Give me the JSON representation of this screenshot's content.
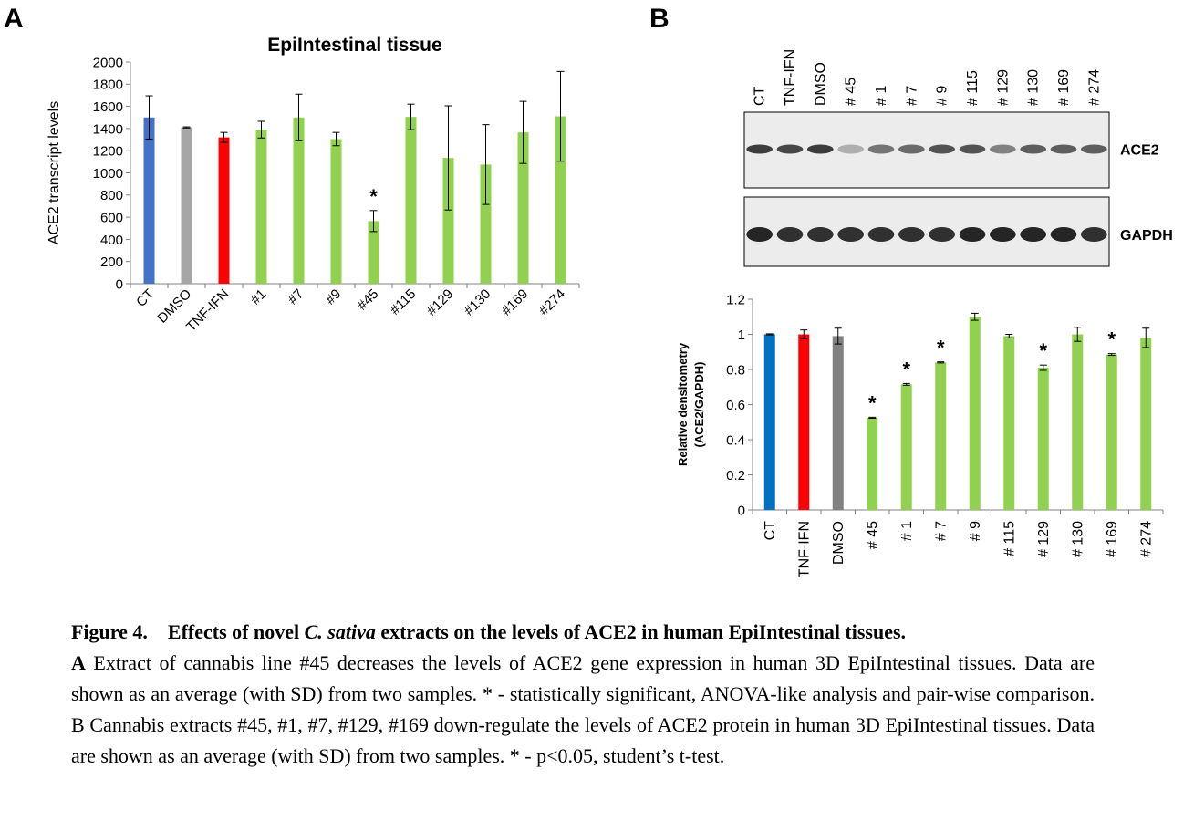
{
  "panels": {
    "a_letter": "A",
    "b_letter": "B"
  },
  "chart_data": [
    {
      "type": "bar",
      "title": "EpiIntestinal tissue",
      "xlabel": "",
      "ylabel": "ACE2  transcript levels",
      "ylim": [
        0,
        2000
      ],
      "yticks": [
        0,
        200,
        400,
        600,
        800,
        1000,
        1200,
        1400,
        1600,
        1800,
        2000
      ],
      "categories": [
        "CT",
        "DMSO",
        "TNF-IFN",
        "#1",
        "#7",
        "#9",
        "#45",
        "#115",
        "#129",
        "#130",
        "#169",
        "#274"
      ],
      "values": [
        1500,
        1410,
        1320,
        1390,
        1500,
        1305,
        565,
        1505,
        1135,
        1075,
        1365,
        1510
      ],
      "errors": [
        195,
        5,
        45,
        75,
        210,
        60,
        95,
        115,
        470,
        360,
        280,
        405
      ],
      "colors": [
        "#4472C4",
        "#A6A6A6",
        "#FF0000",
        "#92D050",
        "#92D050",
        "#92D050",
        "#92D050",
        "#92D050",
        "#92D050",
        "#92D050",
        "#92D050",
        "#92D050"
      ],
      "annotations": [
        {
          "category": "#45",
          "text": "*"
        }
      ],
      "grid": false,
      "legend": "none"
    },
    {
      "type": "bar",
      "title": "",
      "xlabel": "",
      "ylabel": [
        "Relative densitometry",
        "(ACE2/GAPDH)"
      ],
      "ylim": [
        0,
        1.2
      ],
      "yticks": [
        0,
        0.2,
        0.4,
        0.6,
        0.8,
        1,
        1.2
      ],
      "categories": [
        "CT",
        "TNF-IFN",
        "DMSO",
        "# 45",
        "# 1",
        "# 7",
        "# 9",
        "# 115",
        "# 129",
        "# 130",
        "# 169",
        "# 274"
      ],
      "values": [
        1.0,
        1.0,
        0.99,
        0.525,
        0.715,
        0.84,
        1.1,
        0.99,
        0.81,
        1.0,
        0.885,
        0.98
      ],
      "errors": [
        0.003,
        0.025,
        0.045,
        0.003,
        0.005,
        0.003,
        0.02,
        0.01,
        0.015,
        0.04,
        0.005,
        0.055
      ],
      "colors": [
        "#0070C0",
        "#FF0000",
        "#808080",
        "#92D050",
        "#92D050",
        "#92D050",
        "#92D050",
        "#92D050",
        "#92D050",
        "#92D050",
        "#92D050",
        "#92D050"
      ],
      "annotations": [
        {
          "category": "# 45",
          "text": "*"
        },
        {
          "category": "# 1",
          "text": "*"
        },
        {
          "category": "# 7",
          "text": "*"
        },
        {
          "category": "# 129",
          "text": "*"
        },
        {
          "category": "# 169",
          "text": "*"
        }
      ],
      "grid": false,
      "legend": "none"
    }
  ],
  "blot": {
    "lanes": [
      "CT",
      "TNF-IFN",
      "DMSO",
      "# 45",
      "# 1",
      "# 7",
      "# 9",
      "# 115",
      "# 129",
      "# 130",
      "# 169",
      "# 274"
    ],
    "rows": [
      {
        "label": "ACE2",
        "intensity": [
          0.85,
          0.8,
          0.85,
          0.35,
          0.6,
          0.65,
          0.75,
          0.75,
          0.55,
          0.7,
          0.7,
          0.7
        ]
      },
      {
        "label": "GAPDH",
        "intensity": [
          0.95,
          0.9,
          0.9,
          0.9,
          0.9,
          0.9,
          0.9,
          0.95,
          0.95,
          0.95,
          0.95,
          0.9
        ]
      }
    ]
  },
  "caption": {
    "figure_label": "Figure 4.",
    "title_before": "Effects of novel ",
    "title_italic": "C. sativa",
    "title_after": " extracts on the levels of ACE2 in human EpiIntestinal tissues.",
    "a_label": "A",
    "a_text": " Extract of cannabis line #45 decreases the levels of ACE2 gene expression in human 3D EpiIntestinal tissues. Data are shown as an average (with SD) from two samples. *   - statistically significant, ANOVA-like analysis and pair-wise comparison. B Cannabis extracts #45, #1, #7, #129, #169 down-regulate the levels of ACE2 protein in human 3D EpiIntestinal tissues. Data are shown as an average (with SD) from two samples. * - p<0.05, student’s t-test."
  }
}
